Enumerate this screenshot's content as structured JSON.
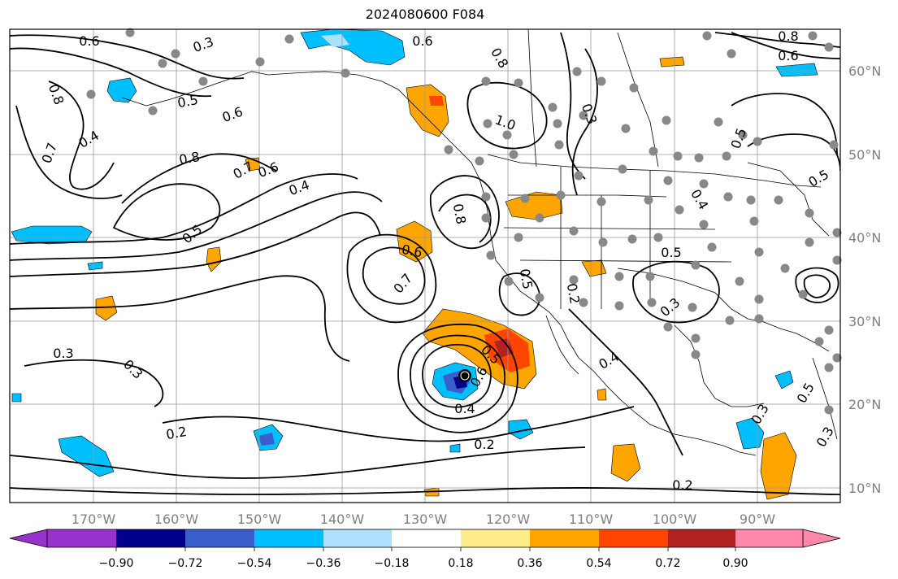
{
  "title": "2024080600 F084",
  "map": {
    "lon_ticks": [
      "170°W",
      "160°W",
      "150°W",
      "140°W",
      "130°W",
      "120°W",
      "110°W",
      "100°W",
      "90°W"
    ],
    "lat_ticks": [
      "60°N",
      "50°N",
      "40°N",
      "30°N",
      "20°N",
      "10°N"
    ],
    "contour_labels": [
      "0.6",
      "0.3",
      "0.8",
      "0.6",
      "0.5",
      "0.6",
      "0.8",
      "1.0",
      "0.4",
      "0.7",
      "0.8",
      "0.7",
      "0.6",
      "0.4",
      "0.5",
      "0.6",
      "0.7",
      "0.3",
      "0.6",
      "0.5",
      "0.4",
      "0.2",
      "0.2",
      "0.4",
      "0.2",
      "0.3",
      "0.5",
      "0.5",
      "0.3",
      "0.4",
      "0.3",
      "0.5",
      "0.8",
      "0.5",
      "0.6",
      "0.2",
      "0.8",
      "0.3",
      "0.5",
      "0.3"
    ],
    "fill_colors": {
      "purple": "#9932CC",
      "navy": "#00008B",
      "royal_blue": "#3A5FCD",
      "deep_sky": "#00BFFF",
      "light_blue": "#ADDFFF",
      "yellow": "#FFEC8B",
      "orange": "#FFA500",
      "red_orange": "#FF4500",
      "firebrick": "#B22222",
      "pink": "#FF88AA"
    }
  },
  "colorbar": {
    "ticks": [
      "−0.90",
      "−0.72",
      "−0.54",
      "−0.36",
      "−0.18",
      "0.18",
      "0.36",
      "0.54",
      "0.72",
      "0.90"
    ],
    "colors": [
      "#9932CC",
      "#00008B",
      "#3A5FCD",
      "#00BFFF",
      "#ADDFFF",
      "#FFFFFF",
      "#FFEC8B",
      "#FFA500",
      "#FF4500",
      "#B22222",
      "#FF88AA"
    ]
  }
}
